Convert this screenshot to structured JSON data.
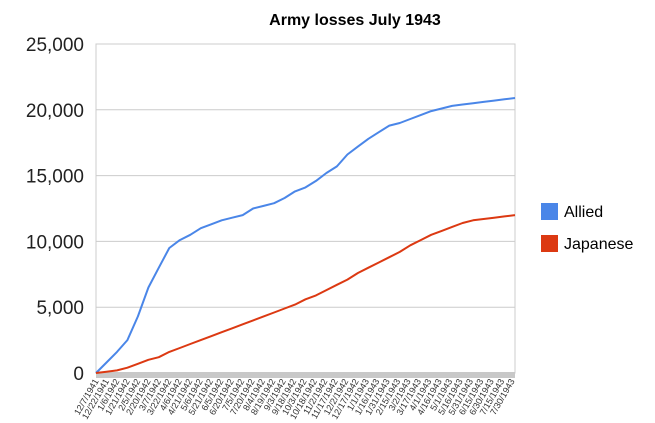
{
  "chart_data": {
    "type": "line",
    "title": "Army losses July 1943",
    "xlabel": "",
    "ylabel": "",
    "ylim": [
      0,
      25000
    ],
    "y_ticks": [
      "0",
      "5,000",
      "10,000",
      "15,000",
      "20,000",
      "25,000"
    ],
    "y_tick_values": [
      0,
      5000,
      10000,
      15000,
      20000,
      25000
    ],
    "grid": true,
    "legend": "right",
    "x_tick_labels": [
      "12/7/1941",
      "12/22/1941",
      "1/6/1942",
      "1/21/1942",
      "2/5/1942",
      "2/20/1942",
      "3/7/1942",
      "3/22/1942",
      "4/6/1942",
      "4/21/1942",
      "5/6/1942",
      "5/21/1942",
      "6/5/1942",
      "6/20/1942",
      "7/5/1942",
      "7/20/1942",
      "8/4/1942",
      "8/19/1942",
      "9/3/1942",
      "9/18/1942",
      "10/3/1942",
      "10/18/1942",
      "11/2/1942",
      "11/17/1942",
      "12/2/1942",
      "12/17/1942",
      "1/1/1943",
      "1/16/1943",
      "1/31/1943",
      "2/15/1943",
      "3/2/1943",
      "3/17/1943",
      "4/1/1943",
      "4/16/1943",
      "5/1/1943",
      "5/16/1943",
      "5/31/1943",
      "6/15/1943",
      "6/30/1943",
      "7/15/1943",
      "7/30/1943"
    ],
    "x": [
      "12/7/1941",
      "12/22/1941",
      "1/6/1942",
      "1/21/1942",
      "2/5/1942",
      "2/20/1942",
      "3/7/1942",
      "3/22/1942",
      "4/6/1942",
      "4/21/1942",
      "5/6/1942",
      "5/21/1942",
      "6/5/1942",
      "6/20/1942",
      "7/5/1942",
      "7/20/1942",
      "8/4/1942",
      "8/19/1942",
      "9/3/1942",
      "9/18/1942",
      "10/3/1942",
      "10/18/1942",
      "11/2/1942",
      "11/17/1942",
      "12/2/1942",
      "12/17/1942",
      "1/1/1943",
      "1/16/1943",
      "1/31/1943",
      "2/15/1943",
      "3/2/1943",
      "3/17/1943",
      "4/1/1943",
      "4/16/1943",
      "5/1/1943",
      "5/16/1943",
      "5/31/1943",
      "6/15/1943",
      "6/30/1943",
      "7/15/1943",
      "7/30/1943"
    ],
    "series": [
      {
        "name": "Allied",
        "color": "#4a86e8",
        "values": [
          0,
          800,
          1600,
          2500,
          4300,
          6500,
          8000,
          9500,
          10100,
          10500,
          11000,
          11300,
          11600,
          11800,
          12000,
          12500,
          12700,
          12900,
          13300,
          13800,
          14100,
          14600,
          15200,
          15700,
          16600,
          17200,
          17800,
          18300,
          18800,
          19000,
          19300,
          19600,
          19900,
          20100,
          20300,
          20400,
          20500,
          20600,
          20700,
          20800,
          20900
        ]
      },
      {
        "name": "Japanese",
        "color": "#dc3912",
        "values": [
          0,
          100,
          200,
          400,
          700,
          1000,
          1200,
          1600,
          1900,
          2200,
          2500,
          2800,
          3100,
          3400,
          3700,
          4000,
          4300,
          4600,
          4900,
          5200,
          5600,
          5900,
          6300,
          6700,
          7100,
          7600,
          8000,
          8400,
          8800,
          9200,
          9700,
          10100,
          10500,
          10800,
          11100,
          11400,
          11600,
          11700,
          11800,
          11900,
          12000
        ]
      }
    ]
  }
}
